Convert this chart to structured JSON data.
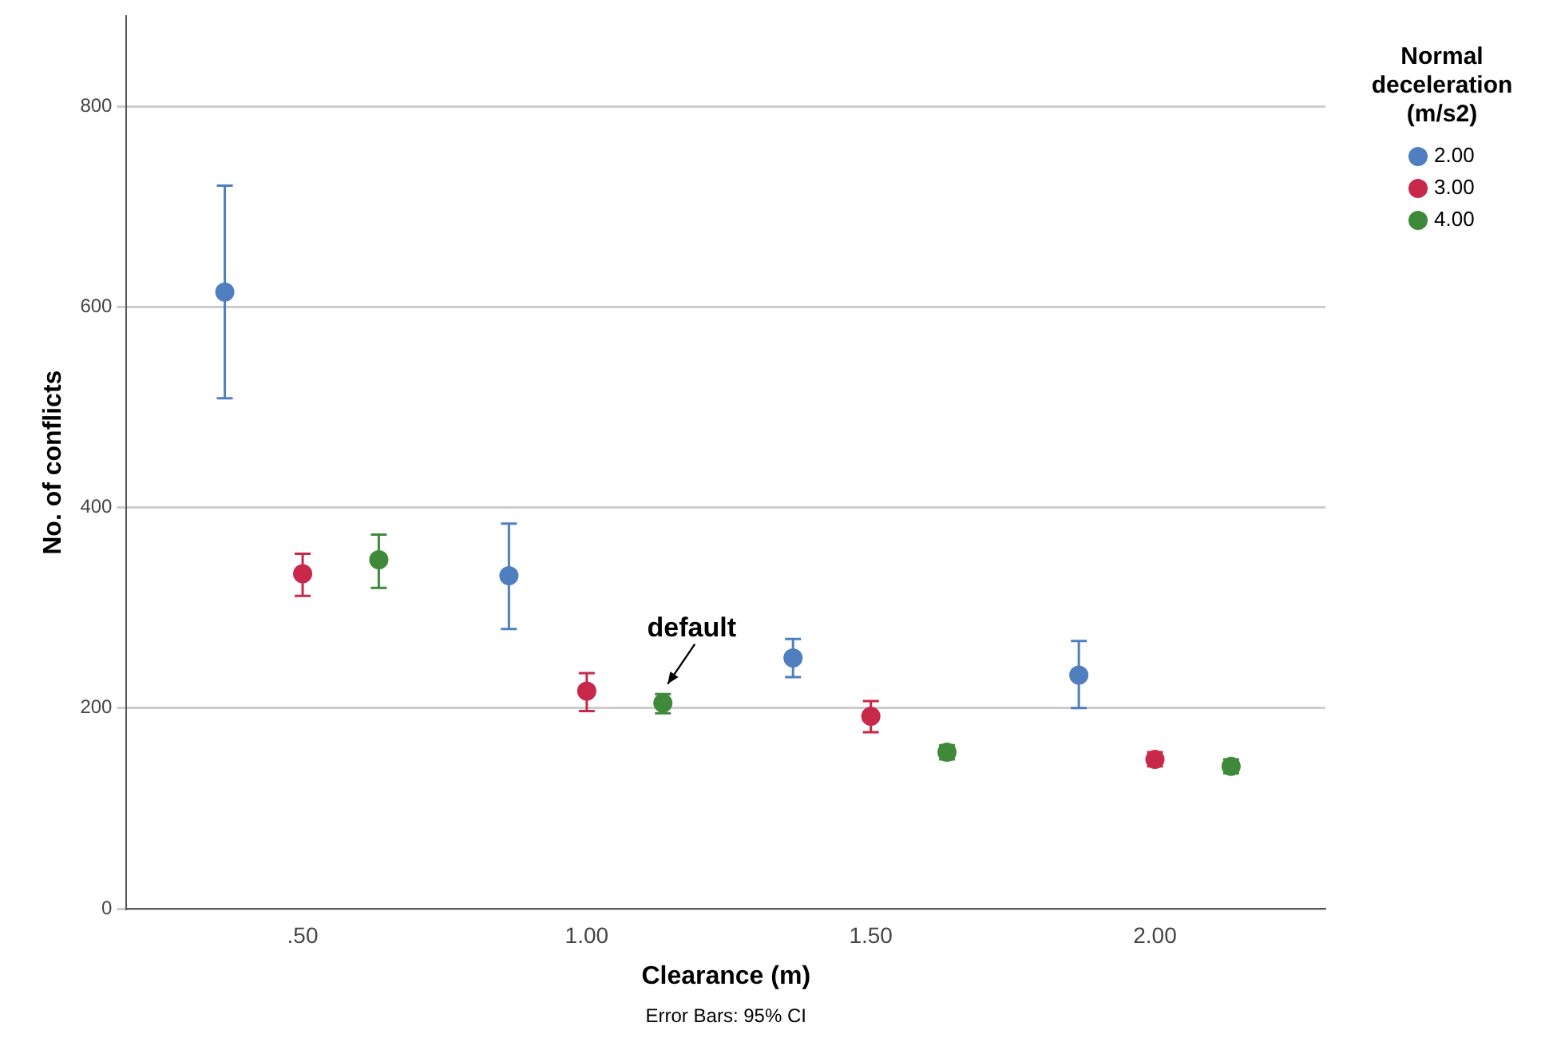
{
  "chart_data": {
    "type": "scatter",
    "xlabel": "Clearance (m)",
    "ylabel": "No. of conflicts",
    "legend_title": "Normal deceleration (m/s2)",
    "xlim": [
      0.19,
      2.3
    ],
    "xticks": [
      {
        "value": 0.5,
        "label": ".50"
      },
      {
        "value": 1,
        "label": "1.00"
      },
      {
        "value": 1.5,
        "label": "1.50"
      },
      {
        "value": 2,
        "label": "2.00"
      }
    ],
    "ylim": [
      0,
      890
    ],
    "yticks": [
      0,
      200,
      400,
      600,
      800
    ],
    "grid": "y",
    "legend": "right",
    "marker": "circle",
    "series": [
      {
        "name": "2.00",
        "color": "#4f7fc0",
        "x": [
          0.363,
          0.863,
          1.363,
          1.866
        ],
        "values": [
          615,
          332,
          250,
          233
        ],
        "errors": [
          [
            509,
            721
          ],
          [
            279,
            384
          ],
          [
            231,
            269
          ],
          [
            200,
            267
          ]
        ]
      },
      {
        "name": "3.00",
        "color": "#c8284a",
        "x": [
          0.5,
          1.0,
          1.5,
          2.0
        ],
        "values": [
          334,
          217,
          192,
          149
        ],
        "errors": [
          [
            312,
            354
          ],
          [
            197,
            235
          ],
          [
            176,
            207
          ],
          [
            142,
            156
          ]
        ]
      },
      {
        "name": "4.00",
        "color": "#3f8a3a",
        "x": [
          0.634,
          1.134,
          1.634,
          2.134
        ],
        "values": [
          348,
          205,
          156,
          142
        ],
        "errors": [
          [
            320,
            373
          ],
          [
            195,
            214
          ],
          [
            149,
            163
          ],
          [
            135,
            149
          ]
        ]
      }
    ],
    "annotations": [
      {
        "text": "default",
        "x": 1.134,
        "y": 205
      },
      "Error Bars: 95% CI"
    ]
  }
}
